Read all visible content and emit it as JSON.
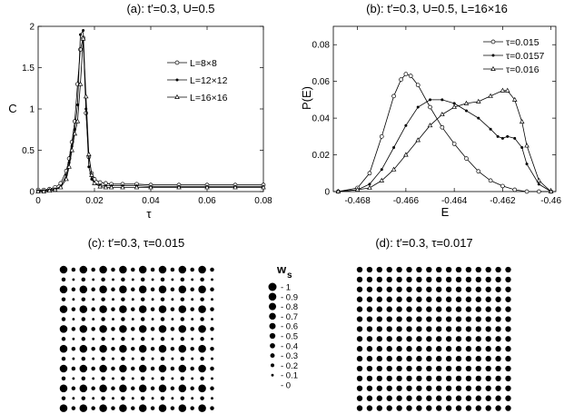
{
  "chart_data": [
    {
      "type": "line",
      "title": "(a): t′=0.3, U=0.5",
      "xlabel": "τ",
      "ylabel": "C",
      "xlim": [
        0,
        0.08
      ],
      "ylim": [
        0,
        2
      ],
      "xticks": [
        "0",
        "0.02",
        "0.04",
        "0.06",
        "0.08"
      ],
      "yticks": [
        "0",
        "0.5",
        "1",
        "1.5",
        "2"
      ],
      "legend_position": "top-right",
      "series": [
        {
          "name": "L=8×8",
          "marker": "circle",
          "x": [
            0.0,
            0.002,
            0.004,
            0.006,
            0.008,
            0.01,
            0.011,
            0.012,
            0.013,
            0.014,
            0.015,
            0.016,
            0.017,
            0.018,
            0.019,
            0.02,
            0.022,
            0.024,
            0.026,
            0.03,
            0.035,
            0.04,
            0.05,
            0.06,
            0.07,
            0.08
          ],
          "y": [
            0.02,
            0.02,
            0.03,
            0.05,
            0.1,
            0.25,
            0.4,
            0.6,
            0.85,
            1.3,
            1.72,
            1.86,
            0.95,
            0.42,
            0.22,
            0.15,
            0.11,
            0.1,
            0.09,
            0.09,
            0.09,
            0.08,
            0.08,
            0.08,
            0.08,
            0.08
          ]
        },
        {
          "name": "L=12×12",
          "marker": "star",
          "x": [
            0.0,
            0.002,
            0.004,
            0.006,
            0.008,
            0.01,
            0.011,
            0.012,
            0.013,
            0.014,
            0.015,
            0.016,
            0.017,
            0.018,
            0.019,
            0.02,
            0.022,
            0.024,
            0.026,
            0.03,
            0.035,
            0.04,
            0.05,
            0.06,
            0.07,
            0.08
          ],
          "y": [
            0.01,
            0.01,
            0.02,
            0.03,
            0.06,
            0.2,
            0.35,
            0.55,
            0.75,
            1.05,
            1.9,
            1.95,
            1.0,
            0.3,
            0.15,
            0.1,
            0.08,
            0.07,
            0.07,
            0.07,
            0.07,
            0.06,
            0.06,
            0.06,
            0.06,
            0.06
          ]
        },
        {
          "name": "L=16×16",
          "marker": "triangle",
          "x": [
            0.0,
            0.002,
            0.004,
            0.006,
            0.008,
            0.01,
            0.011,
            0.012,
            0.013,
            0.014,
            0.015,
            0.016,
            0.017,
            0.018,
            0.019,
            0.02,
            0.022,
            0.024,
            0.026,
            0.03,
            0.035,
            0.04,
            0.05,
            0.06,
            0.07,
            0.08
          ],
          "y": [
            0.0,
            0.0,
            0.01,
            0.02,
            0.05,
            0.15,
            0.3,
            0.5,
            0.7,
            0.85,
            1.3,
            1.85,
            1.15,
            0.45,
            0.2,
            0.1,
            0.06,
            0.05,
            0.05,
            0.05,
            0.05,
            0.05,
            0.05,
            0.05,
            0.05,
            0.05
          ]
        }
      ]
    },
    {
      "type": "line",
      "title": "(b): t′=0.3, U=0.5, L=16×16",
      "xlabel": "E",
      "ylabel": "P(E)",
      "xlim": [
        -0.469,
        -0.4598
      ],
      "ylim": [
        0,
        0.09
      ],
      "xticks": [
        "-0.468",
        "-0.466",
        "-0.464",
        "-0.462",
        "-0.46"
      ],
      "yticks": [
        "0",
        "0.02",
        "0.04",
        "0.06",
        "0.08"
      ],
      "legend_position": "top-right",
      "series": [
        {
          "name": "τ=0.015",
          "marker": "circle",
          "x": [
            -0.4688,
            -0.468,
            -0.4675,
            -0.467,
            -0.4665,
            -0.4662,
            -0.466,
            -0.4658,
            -0.4655,
            -0.465,
            -0.4645,
            -0.464,
            -0.4635,
            -0.463,
            -0.4625,
            -0.462,
            -0.4615,
            -0.461,
            -0.4605,
            -0.46
          ],
          "y": [
            0.0,
            0.002,
            0.01,
            0.03,
            0.052,
            0.061,
            0.064,
            0.063,
            0.058,
            0.046,
            0.035,
            0.026,
            0.018,
            0.011,
            0.006,
            0.003,
            0.001,
            0.0,
            0.0,
            0.0
          ]
        },
        {
          "name": "τ=0.0157",
          "marker": "star",
          "x": [
            -0.4688,
            -0.468,
            -0.4675,
            -0.467,
            -0.4665,
            -0.466,
            -0.4655,
            -0.465,
            -0.4645,
            -0.464,
            -0.4635,
            -0.463,
            -0.4625,
            -0.4622,
            -0.462,
            -0.4618,
            -0.4615,
            -0.4612,
            -0.461,
            -0.4605,
            -0.46
          ],
          "y": [
            0.0,
            0.001,
            0.004,
            0.012,
            0.024,
            0.036,
            0.046,
            0.05,
            0.05,
            0.048,
            0.044,
            0.04,
            0.034,
            0.03,
            0.029,
            0.03,
            0.029,
            0.024,
            0.015,
            0.004,
            0.0
          ]
        },
        {
          "name": "τ=0.016",
          "marker": "triangle",
          "x": [
            -0.4688,
            -0.468,
            -0.4675,
            -0.467,
            -0.4665,
            -0.466,
            -0.4655,
            -0.465,
            -0.4645,
            -0.464,
            -0.4635,
            -0.463,
            -0.4625,
            -0.462,
            -0.4618,
            -0.4615,
            -0.4612,
            -0.461,
            -0.4605,
            -0.46
          ],
          "y": [
            0.0,
            0.001,
            0.002,
            0.006,
            0.012,
            0.02,
            0.028,
            0.036,
            0.042,
            0.046,
            0.048,
            0.049,
            0.052,
            0.055,
            0.055,
            0.05,
            0.038,
            0.025,
            0.006,
            0.0
          ]
        }
      ]
    },
    {
      "type": "scatter",
      "title": "(c): t′=0.3, τ=0.015",
      "grid_size": 16,
      "pattern": "alternating large and small dots on a 2x2 sublattice",
      "weights": {
        "large": 0.9,
        "small": 0.25,
        "alt_small": 0.1
      }
    },
    {
      "type": "scatter",
      "title": "(d): t′=0.3, τ=0.017",
      "grid_size": 16,
      "pattern": "uniform medium dots",
      "weights": {
        "uniform": 0.5
      }
    },
    {
      "type": "legend",
      "title_main": "w",
      "title_sub": "s",
      "items": [
        "1",
        "0.9",
        "0.8",
        "0.7",
        "0.6",
        "0.5",
        "0.4",
        "0.3",
        "0.2",
        "0.1",
        "0"
      ],
      "values": [
        1,
        0.9,
        0.8,
        0.7,
        0.6,
        0.5,
        0.4,
        0.3,
        0.2,
        0.1,
        0
      ]
    }
  ]
}
